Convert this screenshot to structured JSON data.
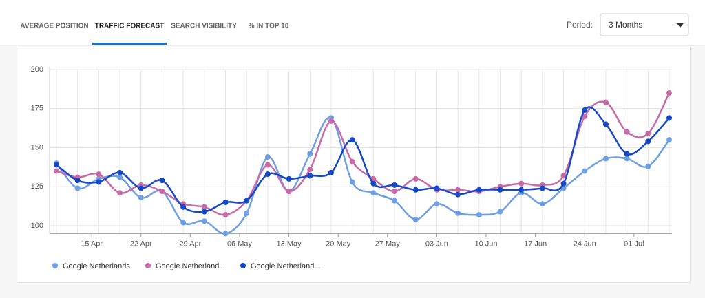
{
  "tabs": [
    "AVERAGE POSITION",
    "TRAFFIC FORECAST",
    "SEARCH VISIBILITY",
    "% IN TOP 10"
  ],
  "active_tab": 1,
  "period": {
    "label": "Period:",
    "value": "3 Months"
  },
  "chart_data": {
    "type": "line",
    "x": [
      "10 Apr",
      "13 Apr",
      "16 Apr",
      "19 Apr",
      "22 Apr",
      "25 Apr",
      "28 Apr",
      "01 May",
      "04 May",
      "07 May",
      "10 May",
      "13 May",
      "16 May",
      "19 May",
      "22 May",
      "25 May",
      "28 May",
      "31 May",
      "03 Jun",
      "06 Jun",
      "09 Jun",
      "12 Jun",
      "15 Jun",
      "18 Jun",
      "21 Jun",
      "24 Jun",
      "27 Jun",
      "30 Jun",
      "03 Jul",
      "06 Jul"
    ],
    "xlim": [
      "10 Apr",
      "06 Jul"
    ],
    "xticks": [
      "15 Apr",
      "22 Apr",
      "29 Apr",
      "06 May",
      "13 May",
      "20 May",
      "27 May",
      "03 Jun",
      "10 Jun",
      "17 Jun",
      "24 Jun",
      "01 Jul"
    ],
    "ylim": [
      95,
      200
    ],
    "yticks": [
      100,
      125,
      150,
      175,
      200
    ],
    "grid": true,
    "series": [
      {
        "name": "Google Netherlands",
        "color": "#6f9fe3",
        "values": [
          140,
          124,
          130,
          131,
          118,
          122,
          102,
          103,
          95,
          108,
          144,
          122,
          146,
          169,
          128,
          121,
          116,
          104,
          114,
          108,
          107,
          109,
          121,
          114,
          124,
          135,
          143,
          143,
          138,
          155
        ]
      },
      {
        "name": "Google Netherland...",
        "color": "#c86aa8",
        "values": [
          135,
          131,
          133,
          121,
          126,
          122,
          114,
          112,
          107,
          116,
          139,
          122,
          136,
          167,
          141,
          130,
          122,
          130,
          123,
          123,
          122,
          125,
          127,
          126,
          132,
          170,
          179,
          160,
          159,
          185
        ]
      },
      {
        "name": "Google Netherland...",
        "color": "#1448c8",
        "values": [
          139,
          129,
          128,
          134,
          124,
          129,
          112,
          109,
          115,
          116,
          133,
          130,
          132,
          134,
          155,
          127,
          126,
          123,
          124,
          120,
          123,
          123,
          123,
          124,
          127,
          174,
          165,
          146,
          154,
          169
        ]
      }
    ]
  }
}
